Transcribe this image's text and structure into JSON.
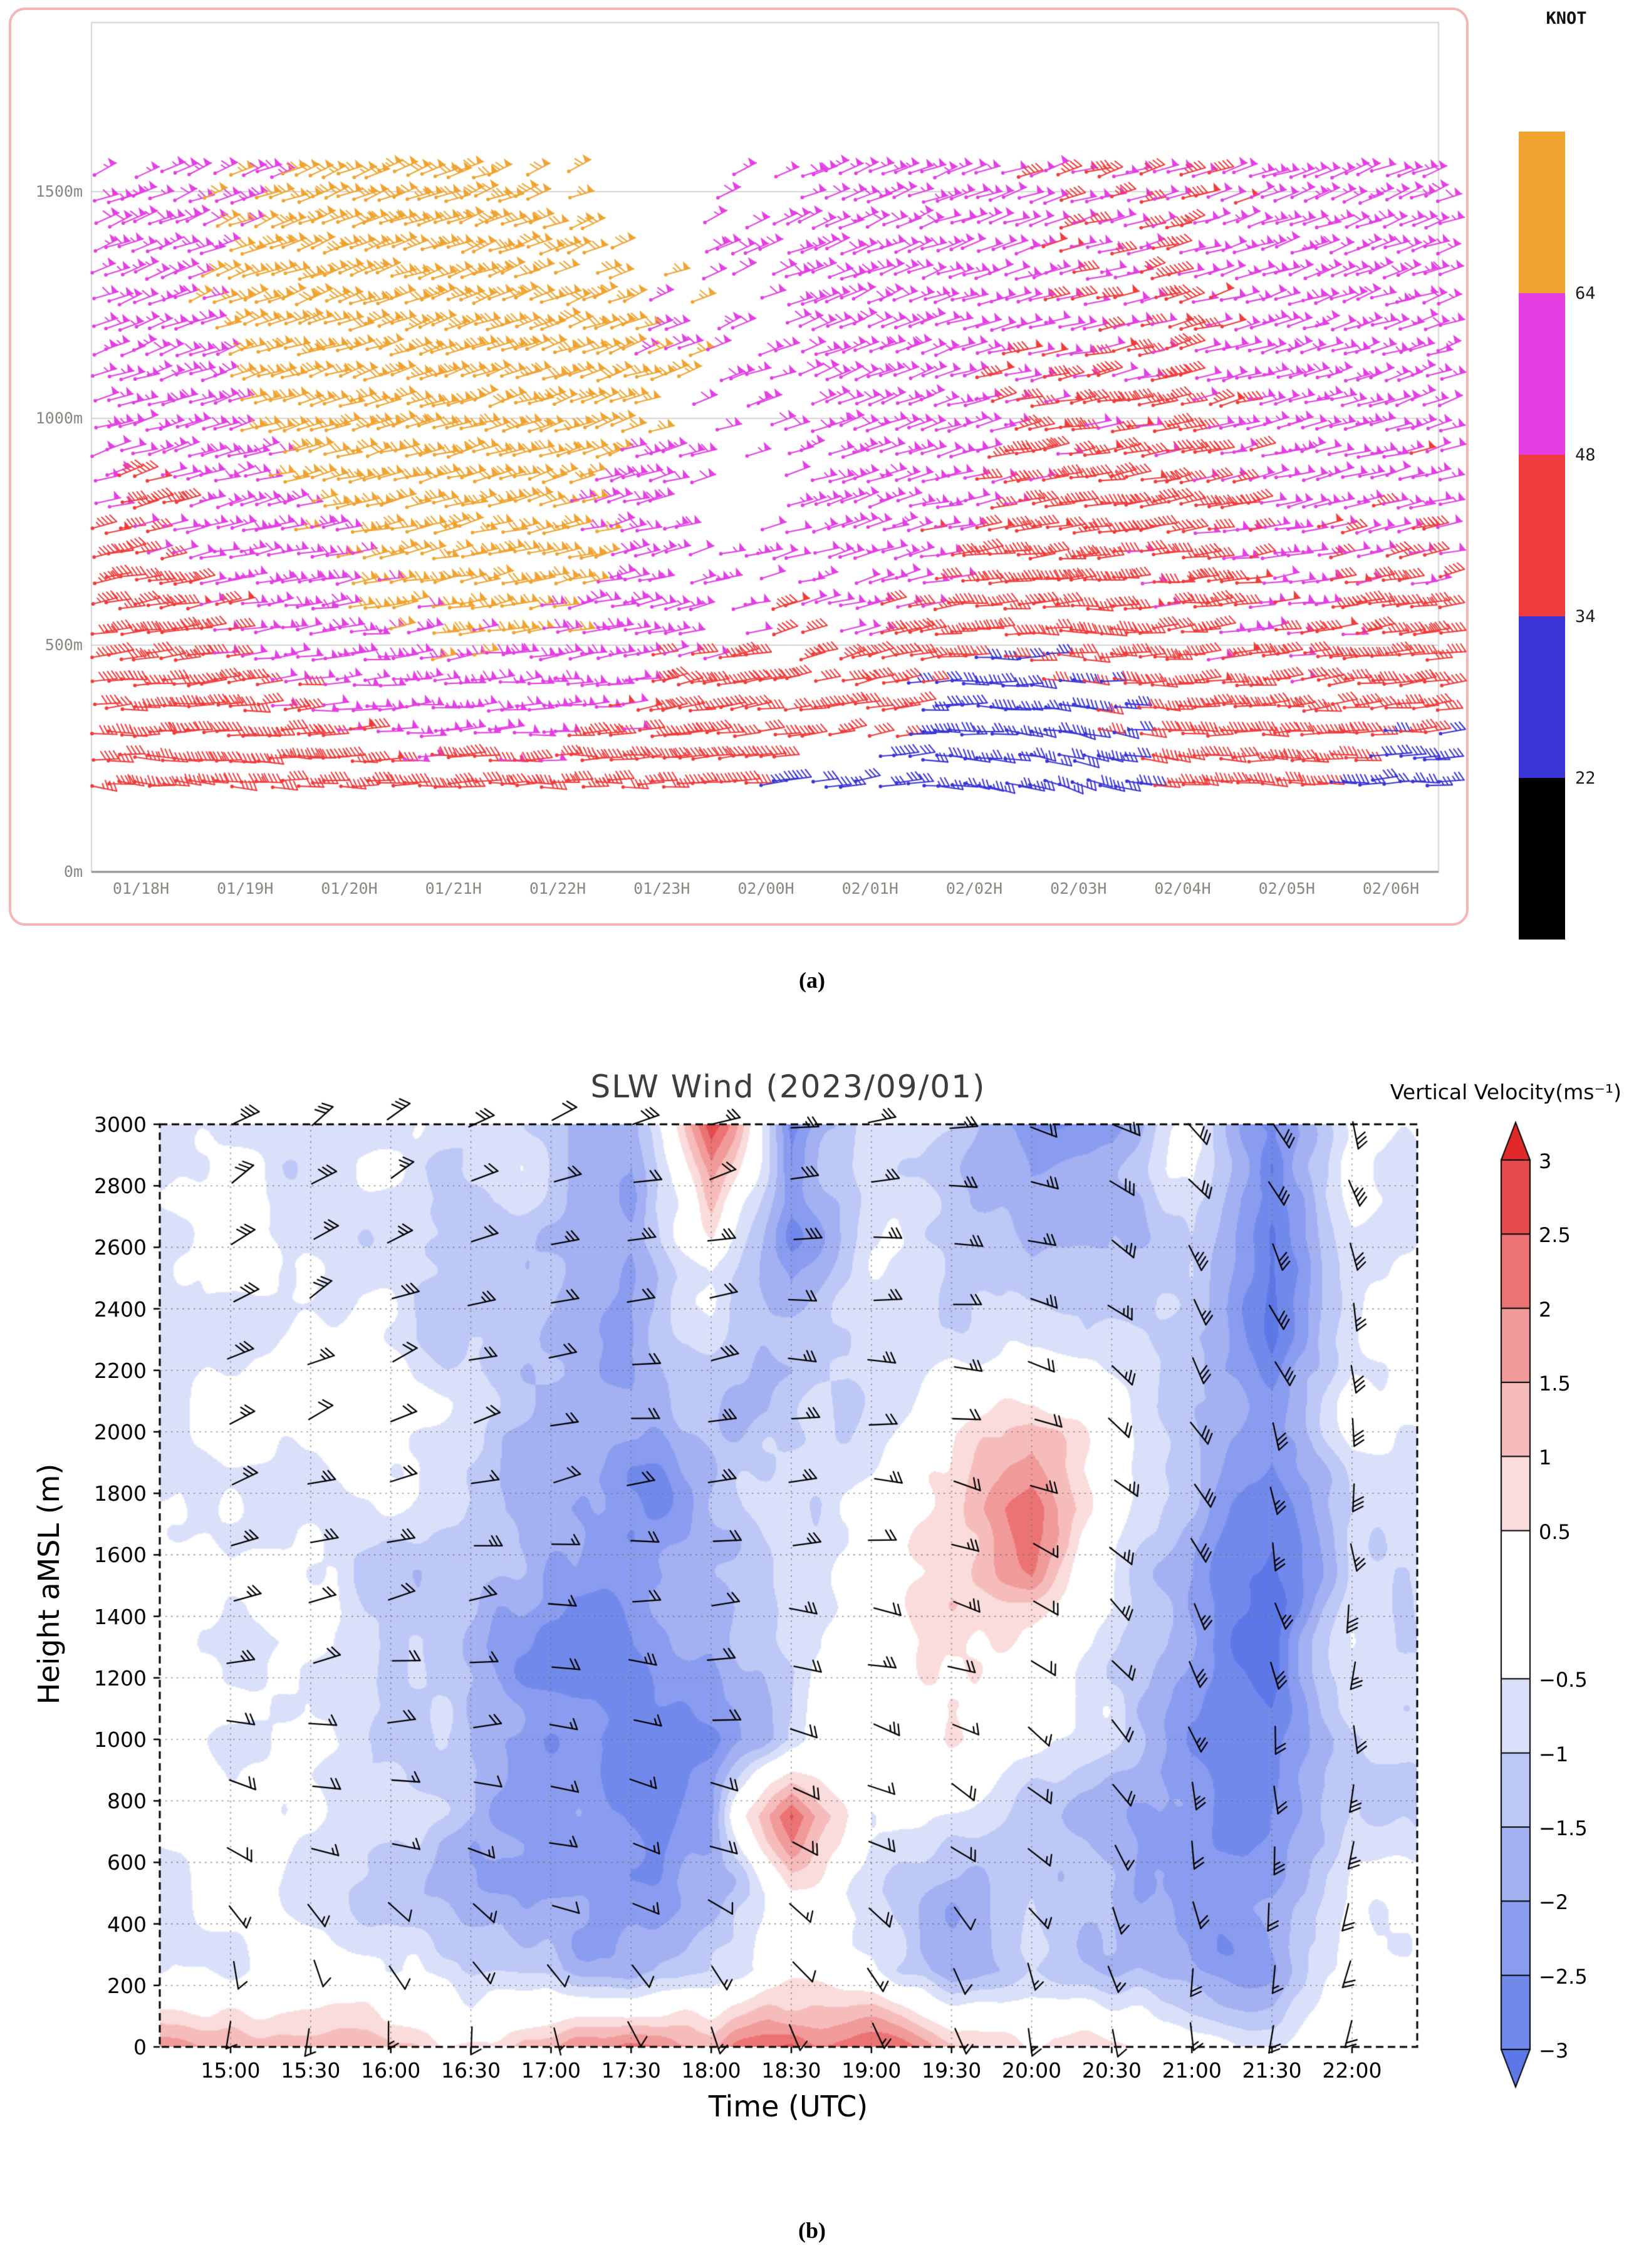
{
  "figure": {
    "caption_a": "(a)",
    "caption_b": "(b)"
  },
  "chart_data": [
    {
      "type": "wind-barb-time-height",
      "panel": "a",
      "colorbar": {
        "title": "KNOT",
        "tick_labels": [
          "64",
          "48",
          "34",
          "22"
        ],
        "segment_colors_top_to_bottom": [
          "#f0a330",
          "#e33fe3",
          "#f03c3c",
          "#3b35d6",
          "#000000"
        ],
        "speed_thresholds_kt": [
          22,
          34,
          48,
          64
        ]
      },
      "x_tick_labels": [
        "01/18H",
        "01/19H",
        "01/20H",
        "01/21H",
        "01/22H",
        "01/23H",
        "02/00H",
        "02/01H",
        "02/02H",
        "02/03H",
        "02/04H",
        "02/05H",
        "02/06H"
      ],
      "y_ticks": [
        {
          "label": "0m",
          "value": 0
        },
        {
          "label": "500m",
          "value": 500
        },
        {
          "label": "1000m",
          "value": 1000
        },
        {
          "label": "1500m",
          "value": 1500
        }
      ],
      "barb_field": {
        "times_h": [
          18,
          19,
          20,
          21,
          22,
          23,
          24,
          25,
          26,
          27,
          28,
          29,
          30
        ],
        "heights_m": [
          200,
          400,
          600,
          800,
          1000,
          1200,
          1400,
          1600
        ],
        "speed_kt": [
          [
            38,
            40,
            42,
            44,
            42,
            40,
            34,
            30,
            24,
            28,
            38,
            40,
            28
          ],
          [
            40,
            46,
            52,
            60,
            58,
            46,
            40,
            40,
            28,
            30,
            44,
            46,
            40
          ],
          [
            42,
            52,
            62,
            68,
            66,
            54,
            50,
            52,
            42,
            46,
            46,
            50,
            46
          ],
          [
            46,
            58,
            67,
            70,
            68,
            58,
            54,
            56,
            48,
            44,
            44,
            52,
            50
          ],
          [
            52,
            66,
            71,
            73,
            69,
            62,
            56,
            58,
            50,
            46,
            45,
            55,
            52
          ],
          [
            56,
            70,
            74,
            76,
            72,
            66,
            58,
            60,
            52,
            48,
            46,
            56,
            55
          ],
          [
            58,
            68,
            72,
            74,
            70,
            64,
            56,
            58,
            52,
            50,
            48,
            55,
            56
          ],
          [
            56,
            62,
            66,
            68,
            66,
            60,
            54,
            56,
            50,
            48,
            46,
            52,
            54
          ]
        ],
        "dir_deg": [
          [
            95,
            95,
            90,
            90,
            90,
            85,
            85,
            80,
            100,
            110,
            95,
            90,
            88
          ],
          [
            85,
            85,
            85,
            85,
            85,
            80,
            80,
            78,
            90,
            95,
            88,
            85,
            84
          ],
          [
            80,
            80,
            80,
            80,
            78,
            76,
            76,
            75,
            85,
            88,
            84,
            82,
            80
          ],
          [
            75,
            76,
            76,
            76,
            75,
            74,
            73,
            72,
            80,
            84,
            80,
            78,
            76
          ],
          [
            72,
            73,
            73,
            73,
            72,
            71,
            70,
            70,
            76,
            80,
            77,
            75,
            73
          ],
          [
            70,
            71,
            71,
            71,
            70,
            69,
            68,
            68,
            74,
            77,
            75,
            73,
            71
          ],
          [
            68,
            69,
            70,
            70,
            69,
            68,
            67,
            67,
            72,
            75,
            73,
            71,
            70
          ],
          [
            67,
            68,
            69,
            69,
            68,
            67,
            66,
            66,
            70,
            73,
            71,
            70,
            68
          ]
        ],
        "presence": [
          [
            1,
            1,
            1,
            1,
            1,
            1,
            0.6,
            0.4,
            1,
            1,
            1,
            1,
            1
          ],
          [
            1,
            1,
            1,
            1,
            1,
            1,
            0.5,
            0.6,
            1,
            1,
            1,
            1,
            1
          ],
          [
            1,
            1,
            1,
            1,
            1,
            0.6,
            0.3,
            0.7,
            1,
            1,
            1,
            1,
            1
          ],
          [
            1,
            1,
            1,
            1,
            1,
            0.5,
            0.2,
            0.8,
            1,
            1,
            1,
            1,
            1
          ],
          [
            1,
            1,
            1,
            1,
            0.9,
            0.5,
            0.3,
            0.9,
            1,
            1,
            1,
            1,
            1
          ],
          [
            1,
            1,
            1,
            1,
            0.7,
            0.4,
            0.4,
            1,
            1,
            1,
            1,
            1,
            1
          ],
          [
            0.8,
            1,
            1,
            1,
            0.5,
            0.2,
            0.5,
            1,
            1,
            1,
            1,
            1,
            1
          ],
          [
            0.3,
            0.6,
            0.8,
            0.6,
            0.2,
            0.1,
            0.2,
            0.6,
            0.5,
            0.5,
            0.5,
            0.6,
            0.5
          ]
        ]
      }
    },
    {
      "type": "wind-barb-contour",
      "panel": "b",
      "title": "SLW Wind (2023/09/01)",
      "colorbar_title": "Vertical Velocity(ms⁻¹)",
      "xlabel": "Time (UTC)",
      "ylabel": "Height aMSL (m)",
      "x_ticks": [
        {
          "label": "15:00",
          "value": 15.0
        },
        {
          "label": "15:30",
          "value": 15.5
        },
        {
          "label": "16:00",
          "value": 16.0
        },
        {
          "label": "16:30",
          "value": 16.5
        },
        {
          "label": "17:00",
          "value": 17.0
        },
        {
          "label": "17:30",
          "value": 17.5
        },
        {
          "label": "18:00",
          "value": 18.0
        },
        {
          "label": "18:30",
          "value": 18.5
        },
        {
          "label": "19:00",
          "value": 19.0
        },
        {
          "label": "19:30",
          "value": 19.5
        },
        {
          "label": "20:00",
          "value": 20.0
        },
        {
          "label": "20:30",
          "value": 20.5
        },
        {
          "label": "21:00",
          "value": 21.0
        },
        {
          "label": "21:30",
          "value": 21.5
        },
        {
          "label": "22:00",
          "value": 22.0
        }
      ],
      "y_ticks": [
        {
          "label": "0",
          "value": 0
        },
        {
          "label": "200",
          "value": 200
        },
        {
          "label": "400",
          "value": 400
        },
        {
          "label": "600",
          "value": 600
        },
        {
          "label": "800",
          "value": 800
        },
        {
          "label": "1000",
          "value": 1000
        },
        {
          "label": "1200",
          "value": 1200
        },
        {
          "label": "1400",
          "value": 1400
        },
        {
          "label": "1600",
          "value": 1600
        },
        {
          "label": "1800",
          "value": 1800
        },
        {
          "label": "2000",
          "value": 2000
        },
        {
          "label": "2200",
          "value": 2200
        },
        {
          "label": "2400",
          "value": 2400
        },
        {
          "label": "2600",
          "value": 2600
        },
        {
          "label": "2800",
          "value": 2800
        },
        {
          "label": "3000",
          "value": 3000
        }
      ],
      "colorbar_ticks": [
        {
          "label": "3",
          "value": 3
        },
        {
          "label": "2.5",
          "value": 2.5
        },
        {
          "label": "2",
          "value": 2
        },
        {
          "label": "1.5",
          "value": 1.5
        },
        {
          "label": "1",
          "value": 1
        },
        {
          "label": "0.5",
          "value": 0.5
        },
        {
          "label": "−0.5",
          "value": -0.5
        },
        {
          "label": "−1",
          "value": -1
        },
        {
          "label": "−1.5",
          "value": -1.5
        },
        {
          "label": "−2",
          "value": -2
        },
        {
          "label": "−2.5",
          "value": -2.5
        },
        {
          "label": "−3",
          "value": -3
        }
      ],
      "palette": {
        "thresholds": [
          -3,
          -2.5,
          -2,
          -1.5,
          -1,
          -0.5,
          0.5,
          1,
          1.5,
          2,
          2.5,
          3
        ],
        "colors": [
          "#5c78e8",
          "#7289ec",
          "#8a9cef",
          "#a3b1f2",
          "#bec8f6",
          "#dbe0fa",
          "#ffffff",
          "#fadcdc",
          "#f6bcbc",
          "#f19a9a",
          "#ec7373",
          "#e64c4c",
          "#e02a2a"
        ]
      },
      "w_field": {
        "times_h": [
          15,
          15.5,
          16,
          16.5,
          17,
          17.5,
          18,
          18.5,
          19,
          19.5,
          20,
          20.5,
          21,
          21.5,
          22
        ],
        "heights_m": [
          0,
          250,
          500,
          750,
          1000,
          1250,
          1500,
          1750,
          2000,
          2250,
          2500,
          2750,
          3000
        ],
        "values": [
          [
            1.2,
            1.5,
            1.0,
            0.8,
            1.8,
            2.0,
            1.5,
            2.8,
            2.2,
            1.4,
            0.8,
            0.5,
            0.3,
            -0.5,
            -0.2
          ],
          [
            -0.2,
            -0.5,
            -0.6,
            -1.2,
            -1.5,
            -1.8,
            -0.8,
            -0.3,
            -0.5,
            -1.8,
            -0.6,
            -1.2,
            -2.2,
            -1.8,
            -0.5
          ],
          [
            -0.4,
            -0.7,
            -0.8,
            -1.8,
            -2.2,
            -2.4,
            -1.6,
            0.5,
            -0.8,
            -1.4,
            -0.8,
            -1.8,
            -2.8,
            -2.4,
            -0.8
          ],
          [
            -0.3,
            -0.6,
            -0.9,
            -2.0,
            -2.4,
            -2.6,
            -2.0,
            2.6,
            -0.5,
            -0.6,
            -1.0,
            -1.5,
            -2.6,
            -2.6,
            -1.0
          ],
          [
            -0.4,
            -0.6,
            -1.0,
            -1.8,
            -2.6,
            -3.0,
            -2.4,
            -1.0,
            0.2,
            0.4,
            -0.5,
            -1.2,
            -2.4,
            -2.8,
            -0.9
          ],
          [
            -0.3,
            -0.5,
            -1.0,
            -1.6,
            -2.4,
            -2.8,
            -2.2,
            -0.8,
            0.3,
            0.6,
            0.5,
            -0.8,
            -2.2,
            -3.0,
            -0.8
          ],
          [
            -0.2,
            -0.4,
            -0.9,
            -1.4,
            -2.2,
            -2.6,
            -2.0,
            -0.6,
            0.0,
            0.8,
            1.2,
            -0.5,
            -2.0,
            -3.2,
            -0.7
          ],
          [
            -0.3,
            -0.4,
            -0.8,
            -1.2,
            -2.0,
            -2.4,
            -1.8,
            -0.8,
            -0.3,
            0.5,
            2.2,
            -0.3,
            -1.8,
            -3.0,
            -0.6
          ],
          [
            -0.3,
            -0.5,
            -0.7,
            -1.1,
            -1.8,
            -2.2,
            -1.5,
            -1.0,
            -0.6,
            0.3,
            1.2,
            -0.4,
            -1.5,
            -2.6,
            -0.5
          ],
          [
            -0.4,
            -0.5,
            -0.6,
            -1.0,
            -1.6,
            -2.0,
            -1.2,
            -1.5,
            -0.9,
            -0.4,
            -0.8,
            -0.6,
            -1.2,
            -2.8,
            -0.6
          ],
          [
            -0.4,
            -0.6,
            -0.5,
            -0.9,
            -1.5,
            -2.2,
            -0.5,
            -2.0,
            -0.8,
            -0.7,
            -1.5,
            -1.2,
            -1.0,
            -3.0,
            -0.5
          ],
          [
            -0.5,
            -0.7,
            -0.6,
            -0.8,
            -1.4,
            -2.0,
            1.0,
            -2.6,
            -0.6,
            -0.9,
            -2.2,
            -2.0,
            -0.8,
            -3.2,
            -0.4
          ],
          [
            -0.6,
            -0.8,
            -0.7,
            -0.9,
            -1.3,
            -1.8,
            3.2,
            -3.0,
            -0.4,
            -0.8,
            -2.4,
            -2.6,
            -0.6,
            -3.0,
            -0.3
          ]
        ]
      },
      "barb_field": {
        "times_h": [
          15,
          16,
          17,
          18,
          19,
          20,
          21,
          22
        ],
        "heights_m": [
          0,
          600,
          1200,
          1800,
          2400,
          3000
        ],
        "speed_kt": [
          [
            12,
            10,
            8,
            10,
            12,
            10,
            15,
            18
          ],
          [
            18,
            15,
            12,
            15,
            18,
            15,
            20,
            22
          ],
          [
            22,
            20,
            18,
            20,
            22,
            18,
            25,
            25
          ],
          [
            25,
            22,
            20,
            22,
            25,
            20,
            28,
            28
          ],
          [
            28,
            25,
            22,
            25,
            25,
            22,
            30,
            30
          ],
          [
            30,
            28,
            25,
            25,
            28,
            25,
            32,
            32
          ]
        ],
        "dir_deg": [
          [
            200,
            190,
            170,
            160,
            150,
            170,
            185,
            190
          ],
          [
            120,
            110,
            100,
            110,
            120,
            140,
            170,
            185
          ],
          [
            80,
            85,
            90,
            95,
            100,
            120,
            160,
            180
          ],
          [
            70,
            75,
            80,
            85,
            95,
            110,
            150,
            175
          ],
          [
            60,
            65,
            75,
            80,
            90,
            105,
            145,
            170
          ],
          [
            55,
            60,
            70,
            75,
            85,
            100,
            140,
            165
          ]
        ]
      }
    }
  ]
}
